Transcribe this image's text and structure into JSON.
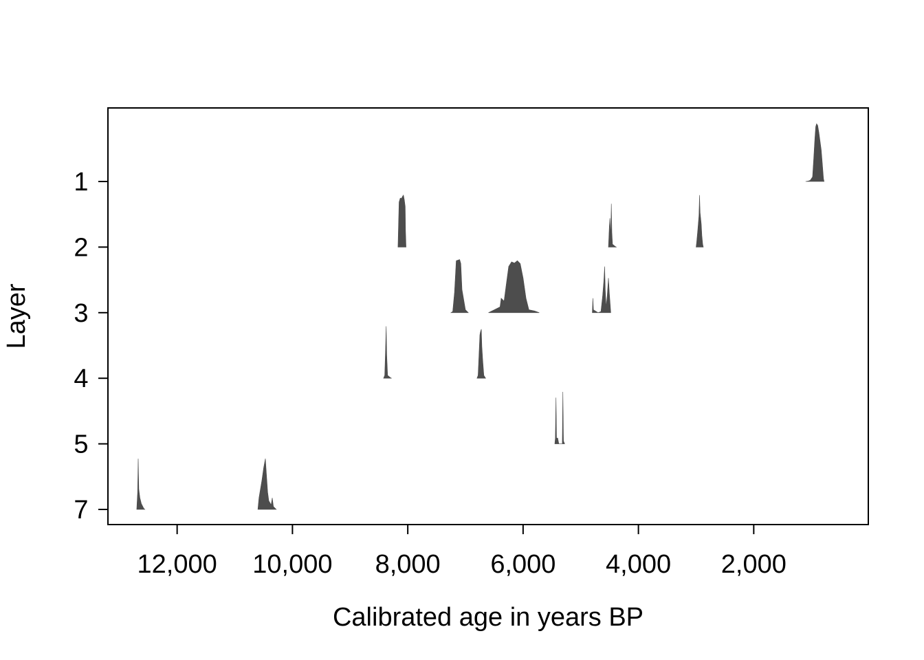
{
  "chart_data": {
    "type": "area",
    "title": "",
    "xlabel": "Calibrated age in years BP",
    "ylabel": "Layer",
    "x_reversed": true,
    "xlim": [
      13200,
      13
    ],
    "x_ticks": [
      12000,
      10000,
      8000,
      6000,
      4000,
      2000
    ],
    "x_tick_labels": [
      "12,000",
      "10,000",
      "8,000",
      "6,000",
      "4,000",
      "2,000"
    ],
    "y_ticks": [
      1,
      2,
      3,
      4,
      5,
      7
    ],
    "y_tick_labels": [
      "1",
      "2",
      "3",
      "4",
      "5",
      "7"
    ],
    "grid": false,
    "color": "#4d4d4d",
    "distributions": [
      {
        "layer": 1,
        "shape": [
          [
            1100,
            0
          ],
          [
            1050,
            0.01
          ],
          [
            1020,
            0.02
          ],
          [
            980,
            0.08
          ],
          [
            960,
            0.4
          ],
          [
            940,
            0.75
          ],
          [
            925,
            0.95
          ],
          [
            910,
            1.0
          ],
          [
            890,
            0.97
          ],
          [
            870,
            0.85
          ],
          [
            850,
            0.7
          ],
          [
            830,
            0.55
          ],
          [
            810,
            0.3
          ],
          [
            790,
            0.05
          ],
          [
            780,
            0
          ]
        ]
      },
      {
        "layer": 2,
        "shape": [
          [
            8170,
            0
          ],
          [
            8160,
            0.4
          ],
          [
            8150,
            0.78
          ],
          [
            8130,
            0.85
          ],
          [
            8110,
            0.84
          ],
          [
            8090,
            0.88
          ],
          [
            8075,
            0.9
          ],
          [
            8060,
            0.82
          ],
          [
            8045,
            0.7
          ],
          [
            8040,
            0.3
          ],
          [
            8030,
            0
          ]
        ]
      },
      {
        "layer": 2,
        "shape": [
          [
            4520,
            0
          ],
          [
            4515,
            0.1
          ],
          [
            4505,
            0.35
          ],
          [
            4495,
            0.5
          ],
          [
            4480,
            0.2
          ],
          [
            4470,
            0.75
          ],
          [
            4460,
            0.25
          ],
          [
            4450,
            0.05
          ],
          [
            4400,
            0.01
          ],
          [
            4380,
            0
          ]
        ]
      },
      {
        "layer": 2,
        "shape": [
          [
            3000,
            0
          ],
          [
            2990,
            0.08
          ],
          [
            2970,
            0.3
          ],
          [
            2950,
            0.55
          ],
          [
            2940,
            0.9
          ],
          [
            2930,
            0.6
          ],
          [
            2910,
            0.4
          ],
          [
            2900,
            0.2
          ],
          [
            2885,
            0.05
          ],
          [
            2875,
            0
          ]
        ]
      },
      {
        "layer": 3,
        "shape": [
          [
            7250,
            0
          ],
          [
            7220,
            0.02
          ],
          [
            7190,
            0.35
          ],
          [
            7170,
            0.7
          ],
          [
            7160,
            0.9
          ],
          [
            7100,
            0.92
          ],
          [
            7080,
            0.85
          ],
          [
            7060,
            0.4
          ],
          [
            7000,
            0.05
          ],
          [
            6950,
            0
          ]
        ]
      },
      {
        "layer": 3,
        "shape": [
          [
            6600,
            0
          ],
          [
            6500,
            0.05
          ],
          [
            6400,
            0.1
          ],
          [
            6380,
            0.25
          ],
          [
            6330,
            0.2
          ],
          [
            6290,
            0.5
          ],
          [
            6250,
            0.8
          ],
          [
            6200,
            0.88
          ],
          [
            6150,
            0.86
          ],
          [
            6100,
            0.9
          ],
          [
            6050,
            0.85
          ],
          [
            6000,
            0.6
          ],
          [
            5950,
            0.25
          ],
          [
            5900,
            0.05
          ],
          [
            5800,
            0.03
          ],
          [
            5720,
            0
          ]
        ]
      },
      {
        "layer": 3,
        "shape": [
          [
            4800,
            0
          ],
          [
            4790,
            0.25
          ],
          [
            4780,
            0.05
          ],
          [
            4700,
            0
          ],
          [
            4650,
            0.02
          ],
          [
            4620,
            0.3
          ],
          [
            4600,
            0.55
          ],
          [
            4585,
            0.8
          ],
          [
            4575,
            0.4
          ],
          [
            4560,
            0.1
          ],
          [
            4540,
            0.3
          ],
          [
            4520,
            0.6
          ],
          [
            4505,
            0.35
          ],
          [
            4480,
            0
          ]
        ]
      },
      {
        "layer": 4,
        "shape": [
          [
            8420,
            0
          ],
          [
            8400,
            0.05
          ],
          [
            8385,
            0.5
          ],
          [
            8375,
            0.9
          ],
          [
            8365,
            0.4
          ],
          [
            8350,
            0.05
          ],
          [
            8300,
            0.01
          ],
          [
            8280,
            0
          ]
        ]
      },
      {
        "layer": 4,
        "shape": [
          [
            6800,
            0
          ],
          [
            6780,
            0.05
          ],
          [
            6765,
            0.4
          ],
          [
            6750,
            0.75
          ],
          [
            6740,
            0.8
          ],
          [
            6725,
            0.85
          ],
          [
            6715,
            0.55
          ],
          [
            6700,
            0.3
          ],
          [
            6680,
            0.05
          ],
          [
            6650,
            0
          ]
        ]
      },
      {
        "layer": 5,
        "shape": [
          [
            5450,
            0
          ],
          [
            5440,
            0.1
          ],
          [
            5430,
            0.8
          ],
          [
            5420,
            0.1
          ],
          [
            5400,
            0.1
          ],
          [
            5380,
            0
          ],
          [
            5320,
            0
          ],
          [
            5310,
            0.9
          ],
          [
            5300,
            0.05
          ],
          [
            5280,
            0
          ]
        ]
      },
      {
        "layer": 7,
        "shape": [
          [
            12700,
            0
          ],
          [
            12685,
            0.3
          ],
          [
            12675,
            0.88
          ],
          [
            12665,
            0.35
          ],
          [
            12645,
            0.2
          ],
          [
            12620,
            0.1
          ],
          [
            12580,
            0.02
          ],
          [
            12560,
            0
          ]
        ]
      },
      {
        "layer": 7,
        "shape": [
          [
            10600,
            0
          ],
          [
            10580,
            0.2
          ],
          [
            10555,
            0.35
          ],
          [
            10530,
            0.5
          ],
          [
            10500,
            0.72
          ],
          [
            10470,
            0.88
          ],
          [
            10450,
            0.6
          ],
          [
            10430,
            0.3
          ],
          [
            10410,
            0.15
          ],
          [
            10370,
            0.08
          ],
          [
            10350,
            0.2
          ],
          [
            10330,
            0.05
          ],
          [
            10300,
            0.02
          ],
          [
            10280,
            0
          ]
        ]
      }
    ]
  }
}
